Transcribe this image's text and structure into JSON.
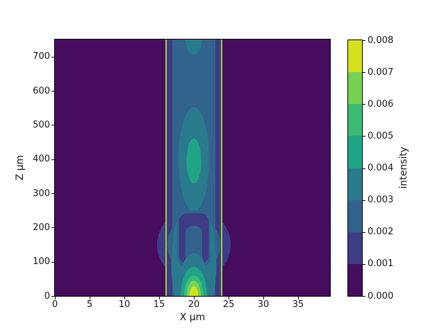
{
  "chart_data": {
    "type": "contourf",
    "title": "",
    "xlabel": "X μm",
    "ylabel": "Z μm",
    "colorbar_label": "intensity",
    "xlim": [
      0,
      39.6
    ],
    "zlim": [
      0,
      750
    ],
    "xticks": [
      0,
      5,
      10,
      15,
      20,
      25,
      30,
      35
    ],
    "zticks": [
      0,
      100,
      200,
      300,
      400,
      500,
      600,
      700
    ],
    "colorbar_ticks": [
      {
        "v": 0.0,
        "label": "0.000"
      },
      {
        "v": 0.001,
        "label": "0.001"
      },
      {
        "v": 0.002,
        "label": "0.002"
      },
      {
        "v": 0.003,
        "label": "0.003"
      },
      {
        "v": 0.004,
        "label": "0.004"
      },
      {
        "v": 0.005,
        "label": "0.005"
      },
      {
        "v": 0.006,
        "label": "0.006"
      },
      {
        "v": 0.007,
        "label": "0.007"
      },
      {
        "v": 0.008,
        "label": "0.008"
      }
    ],
    "levels": [
      0.0,
      0.001,
      0.002,
      0.003,
      0.004,
      0.005,
      0.006,
      0.007,
      0.008
    ],
    "level_colors": [
      "#460d5f",
      "#3e3c86",
      "#32638d",
      "#2a7a8e",
      "#20a486",
      "#3cbb75",
      "#79d152",
      "#d4e21b"
    ],
    "waveguide_lines": {
      "x": [
        16,
        24
      ],
      "color": "#9fd534"
    },
    "description": "Intensity map of light in a slab waveguide (walls marked by yellow-green vertical lines at x=16 and x=24 μm). Bright source spot centered at (x=20, z=0) peaks above 0.007; guided column between the walls shows beating along z: antinode blob at (20, ≈395) reaching ≈0.005, top antinode at (20, ≈750) ≈0.004, dark node oval at (20, ≈612) ≈0.0015, off-axis lobes with a dark arch around z≈100–240 where the field bulges slightly outside the walls; background ≈0.",
    "features": [
      {
        "t": "rect",
        "band": 0,
        "x": [
          0,
          39.6
        ],
        "z": [
          0,
          750
        ]
      },
      {
        "t": "rect",
        "band": 1,
        "x": [
          16.1,
          23.9
        ],
        "z": [
          0,
          750
        ]
      },
      {
        "t": "ellipse",
        "band": 1,
        "c": [
          20,
          150
        ],
        "r": [
          5.3,
          105
        ]
      },
      {
        "t": "rect",
        "band": 2,
        "x": [
          16.9,
          23.1
        ],
        "z": [
          0,
          750
        ]
      },
      {
        "t": "ellipse",
        "band": 2,
        "c": [
          20,
          150
        ],
        "r": [
          3.8,
          85
        ]
      },
      {
        "t": "ellipse",
        "band": 3,
        "c": [
          20,
          400
        ],
        "r": [
          2.2,
          152
        ]
      },
      {
        "t": "ellipse",
        "band": 4,
        "c": [
          20,
          395
        ],
        "r": [
          1.05,
          66
        ]
      },
      {
        "t": "ellipse",
        "band": 3,
        "c": [
          20,
          752
        ],
        "r": [
          1.2,
          45
        ]
      },
      {
        "t": "ellipse",
        "band": 3,
        "c": [
          20,
          90
        ],
        "r": [
          3.25,
          165
        ]
      },
      {
        "t": "ellipse",
        "band": 3,
        "c": [
          20,
          170
        ],
        "r": [
          3.0,
          80
        ]
      },
      {
        "t": "rrect",
        "band": 2,
        "x": [
          17.6,
          22.4
        ],
        "z": [
          85,
          250
        ],
        "rad": 14
      },
      {
        "t": "rrect",
        "band": 1,
        "x": [
          17.85,
          22.15
        ],
        "z": [
          95,
          242
        ],
        "rad": 12
      },
      {
        "t": "rrect",
        "band": 2,
        "x": [
          18.8,
          21.2
        ],
        "z": [
          60,
          205
        ],
        "rad": 10
      },
      {
        "t": "ellipse",
        "band": 3,
        "c": [
          20,
          0
        ],
        "r": [
          2.4,
          125
        ]
      },
      {
        "t": "ellipse",
        "band": 4,
        "c": [
          20,
          0
        ],
        "r": [
          1.9,
          85
        ]
      },
      {
        "t": "ellipse",
        "band": 5,
        "c": [
          20,
          0
        ],
        "r": [
          1.4,
          60
        ]
      },
      {
        "t": "ellipse",
        "band": 6,
        "c": [
          20,
          0
        ],
        "r": [
          1.0,
          45
        ]
      },
      {
        "t": "ellipse",
        "band": 7,
        "c": [
          20,
          0
        ],
        "r": [
          0.62,
          29
        ]
      }
    ]
  }
}
